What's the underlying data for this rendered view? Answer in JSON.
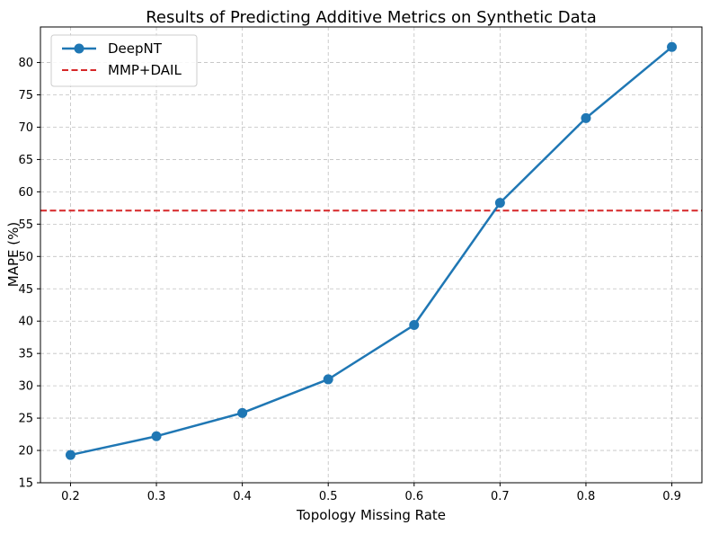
{
  "chart_data": {
    "type": "line",
    "title": "Results of Predicting Additive Metrics on Synthetic Data",
    "xlabel": "Topology Missing Rate",
    "ylabel": "MAPE (%)",
    "x": [
      0.2,
      0.3,
      0.4,
      0.5,
      0.6,
      0.7,
      0.8,
      0.9
    ],
    "xticks": [
      "0.2",
      "0.3",
      "0.4",
      "0.5",
      "0.6",
      "0.7",
      "0.8",
      "0.9"
    ],
    "yticks": [
      "15",
      "20",
      "25",
      "30",
      "35",
      "40",
      "45",
      "50",
      "55",
      "60",
      "65",
      "70",
      "75",
      "80"
    ],
    "xlim": [
      0.165,
      0.935
    ],
    "ylim": [
      15,
      85.5
    ],
    "grid": true,
    "legend_position": "top-left",
    "series": [
      {
        "name": "DeepNT",
        "style": "solid line with circle markers",
        "color": "#1f77b4",
        "values": [
          19.3,
          22.2,
          25.8,
          31.0,
          39.4,
          58.3,
          71.4,
          82.4
        ]
      }
    ],
    "reference_lines": [
      {
        "name": "MMP+DAIL",
        "style": "dashed horizontal",
        "color": "#d62728",
        "y": 57.1
      }
    ]
  }
}
